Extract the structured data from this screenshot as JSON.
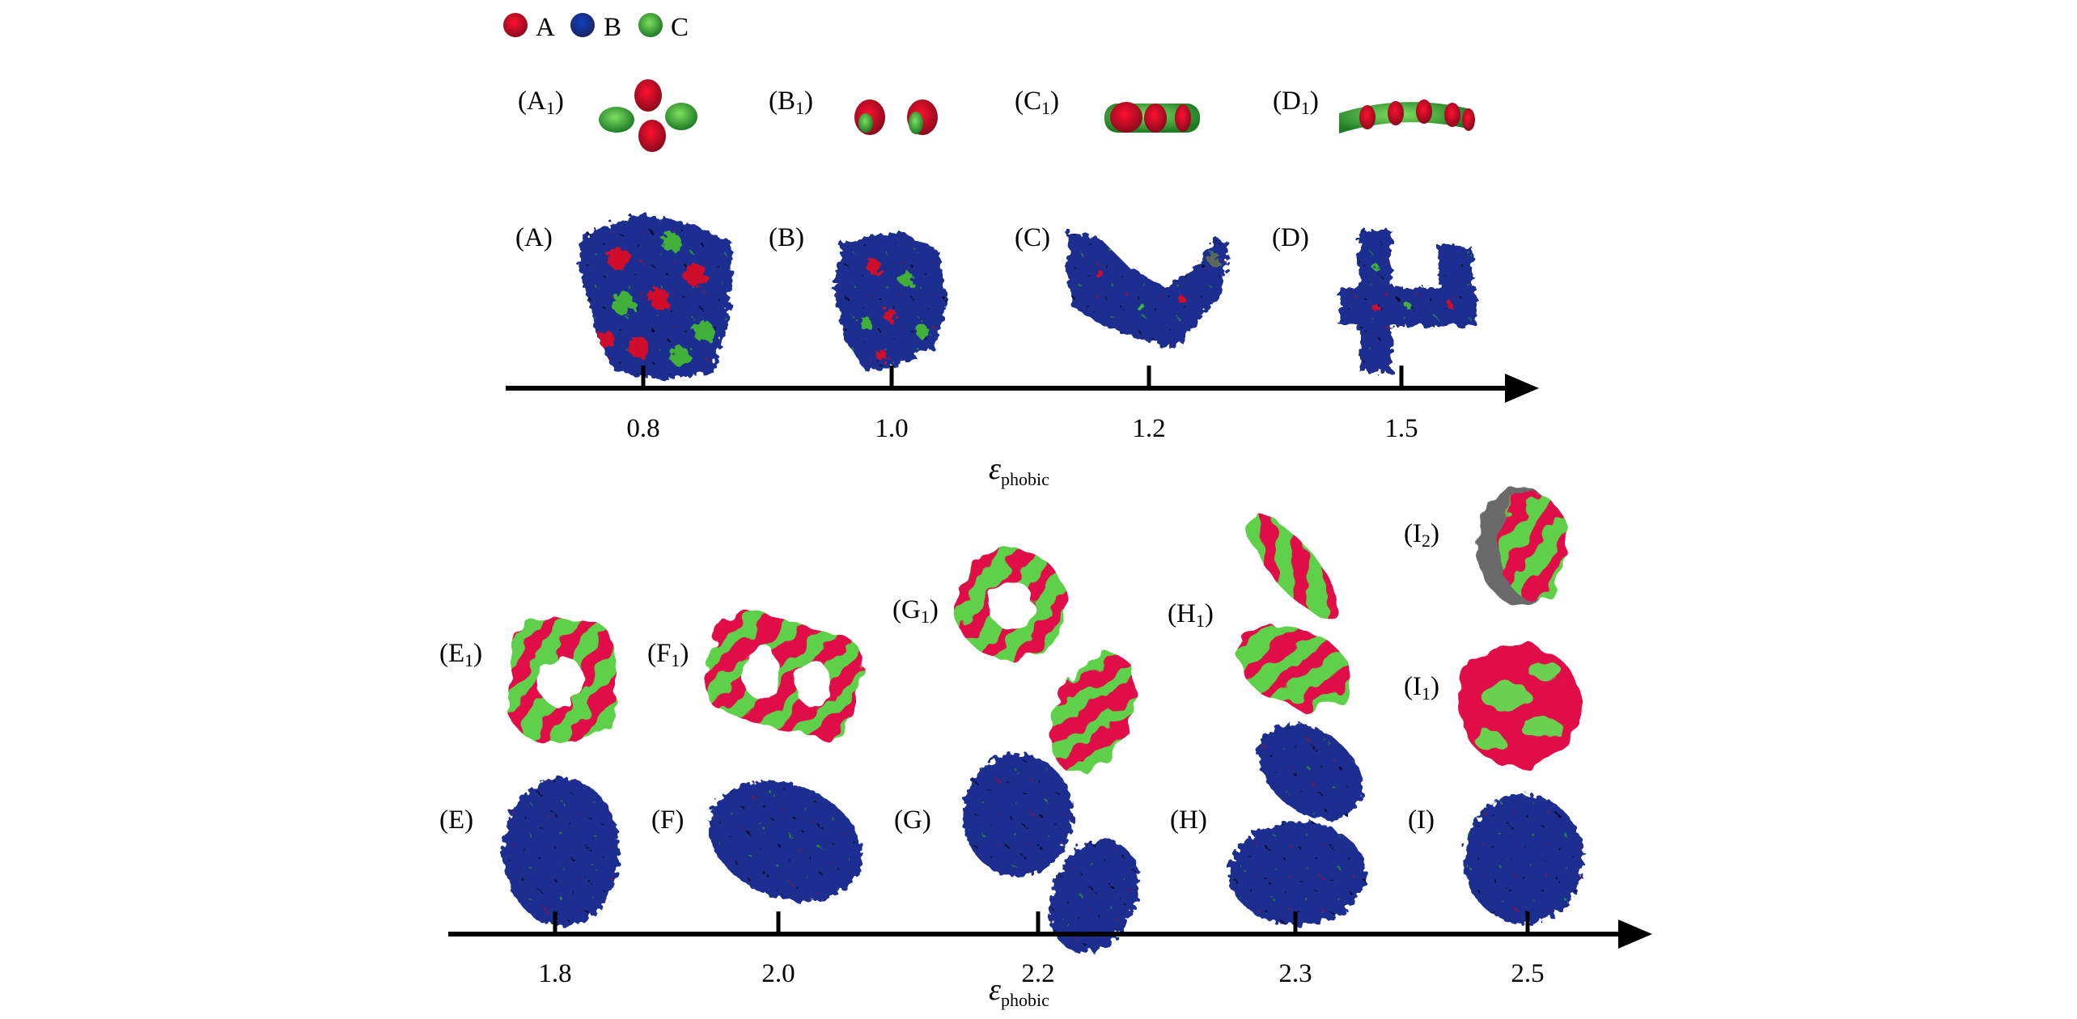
{
  "legend": [
    {
      "label": "A",
      "color": "#d0102a"
    },
    {
      "label": "B",
      "color": "#1a2f8c"
    },
    {
      "label": "C",
      "color": "#3fb03a"
    }
  ],
  "top_panel": {
    "snapshot_labels": [
      {
        "letter": "A",
        "sub": "1"
      },
      {
        "letter": "B",
        "sub": "1"
      },
      {
        "letter": "C",
        "sub": "1"
      },
      {
        "letter": "D",
        "sub": "1"
      }
    ],
    "aggregate_labels": [
      "(A)",
      "(B)",
      "(C)",
      "(D)"
    ],
    "axis": {
      "ticks": [
        "0.8",
        "1.0",
        "1.2",
        "1.5"
      ],
      "label_symbol": "ε",
      "label_sub": "phobic"
    }
  },
  "bottom_panel": {
    "snapshot_labels": [
      {
        "letter": "E",
        "sub": "1"
      },
      {
        "letter": "F",
        "sub": "1"
      },
      {
        "letter": "G",
        "sub": "1"
      },
      {
        "letter": "H",
        "sub": "1"
      },
      {
        "letter": "I",
        "sub": "2"
      },
      {
        "letter": "I",
        "sub": "1"
      }
    ],
    "aggregate_labels": [
      "(E)",
      "(F)",
      "(G)",
      "(H)",
      "(I)"
    ],
    "axis": {
      "ticks": [
        "1.8",
        "2.0",
        "2.2",
        "2.3",
        "2.5"
      ],
      "label_symbol": "ε",
      "label_sub": "phobic"
    }
  },
  "colors": {
    "A": "#d0102a",
    "B": "#1a2f8c",
    "C": "#3fb03a",
    "axis": "#000000"
  }
}
